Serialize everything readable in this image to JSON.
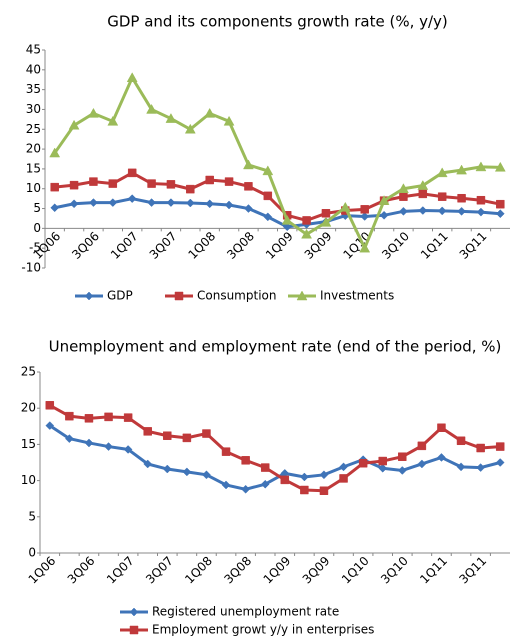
{
  "chart_data": [
    {
      "type": "line",
      "title": "GDP and its components growth rate (%, y/y)",
      "categories": [
        "1Q06",
        null,
        "3Q06",
        null,
        "1Q07",
        null,
        "3Q07",
        null,
        "1Q08",
        null,
        "3Q08",
        null,
        "1Q09",
        null,
        "3Q09",
        null,
        "1Q10",
        null,
        "3Q10",
        null,
        "1Q11",
        null,
        "3Q11",
        null
      ],
      "series": [
        {
          "name": "GDP",
          "color": "#3f74b8",
          "marker": "diamond",
          "values": [
            5.2,
            6.2,
            6.5,
            6.5,
            7.5,
            6.5,
            6.5,
            6.4,
            6.2,
            5.9,
            5.0,
            2.9,
            0.4,
            1.0,
            1.7,
            3.2,
            3.0,
            3.3,
            4.3,
            4.5,
            4.4,
            4.3,
            4.1,
            3.7
          ]
        },
        {
          "name": "Consumption",
          "color": "#c0393a",
          "marker": "square",
          "values": [
            10.4,
            10.9,
            11.8,
            11.3,
            14.0,
            11.3,
            11.1,
            9.9,
            12.2,
            11.8,
            10.6,
            8.2,
            3.3,
            2.0,
            3.8,
            4.5,
            4.8,
            7.0,
            8.0,
            8.7,
            8.0,
            7.6,
            7.1,
            6.1
          ]
        },
        {
          "name": "Investments",
          "color": "#9bbb59",
          "marker": "triangle",
          "values": [
            19,
            26,
            29,
            27,
            38,
            30,
            27.7,
            25,
            29,
            27,
            16,
            14.5,
            2,
            -1.5,
            1.5,
            5.3,
            -5,
            7,
            10,
            10.8,
            14,
            14.7,
            15.5,
            15.4
          ]
        }
      ],
      "ylim": [
        -10,
        45
      ],
      "yticks": [
        -10,
        -5,
        0,
        5,
        10,
        15,
        20,
        25,
        30,
        35,
        40,
        45
      ],
      "legend": "bottom"
    },
    {
      "type": "line",
      "title": "Unemployment and employment rate (end of the period, %)",
      "categories": [
        "1Q06",
        null,
        "3Q06",
        null,
        "1Q07",
        null,
        "3Q07",
        null,
        "1Q08",
        null,
        "3Q08",
        null,
        "1Q09",
        null,
        "3Q09",
        null,
        "1Q10",
        null,
        "3Q10",
        null,
        "1Q11",
        null,
        "3Q11",
        null
      ],
      "series": [
        {
          "name": "Registered unemployment rate",
          "color": "#3f74b8",
          "marker": "diamond",
          "values": [
            17.6,
            15.8,
            15.2,
            14.7,
            14.3,
            12.3,
            11.6,
            11.2,
            10.8,
            9.4,
            8.8,
            9.5,
            11.0,
            10.5,
            10.8,
            11.9,
            12.9,
            11.7,
            11.4,
            12.3,
            13.2,
            11.9,
            11.8,
            12.5
          ]
        },
        {
          "name": "Employment growt y/y in enterprises",
          "color": "#c0393a",
          "marker": "square",
          "values": [
            20.4,
            18.9,
            18.6,
            18.8,
            18.7,
            16.8,
            16.2,
            15.9,
            16.5,
            14.0,
            12.8,
            11.8,
            10.1,
            8.7,
            8.6,
            10.3,
            12.4,
            12.7,
            13.3,
            14.8,
            17.3,
            15.5,
            14.5,
            14.7
          ]
        }
      ],
      "ylim": [
        0,
        25
      ],
      "yticks": [
        0,
        5,
        10,
        15,
        20,
        25
      ],
      "legend": "bottom"
    }
  ]
}
